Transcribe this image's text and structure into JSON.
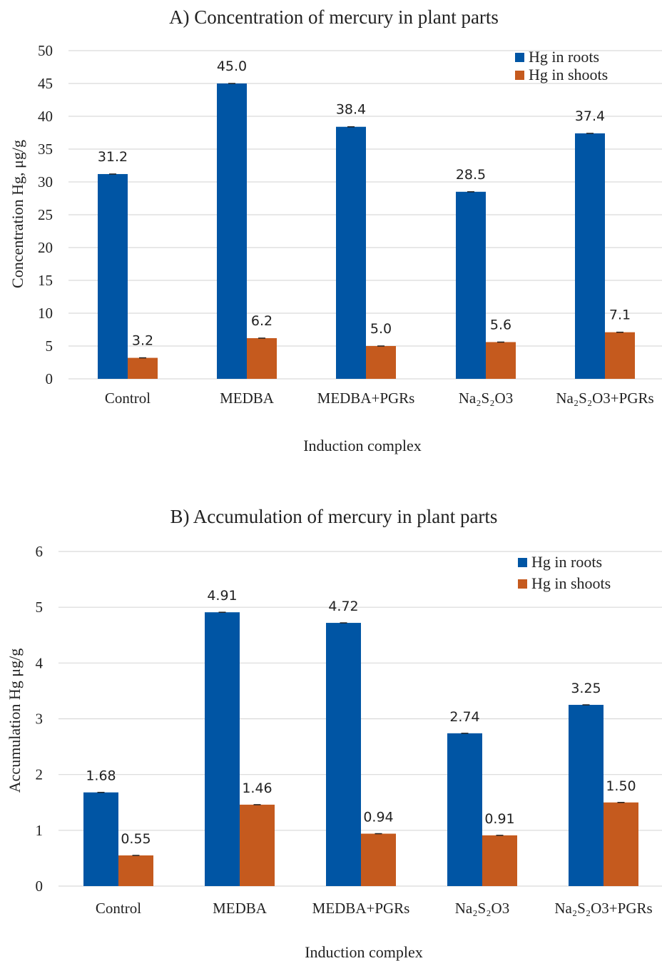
{
  "colors": {
    "roots": "#0055A4",
    "shoots": "#C55A1E",
    "grid": "#d9d9d9",
    "errbar": "#222222"
  },
  "chart_data": [
    {
      "type": "bar",
      "title": "A) Concentration of mercury in plant parts",
      "xlabel": "Induction complex",
      "ylabel": "Concentration  Hg, μg/g",
      "ylim": [
        0,
        50
      ],
      "yticks": [
        0,
        5,
        10,
        15,
        20,
        25,
        30,
        35,
        40,
        45,
        50
      ],
      "grid": true,
      "legend_position": "top-right",
      "categories": [
        "Control",
        "MEDBA",
        "MEDBA+PGRs",
        "Na₂S₂O3",
        "Na₂S₂O3+PGRs"
      ],
      "series": [
        {
          "name": "Hg in roots",
          "values": [
            31.2,
            45.0,
            38.4,
            28.5,
            37.4
          ],
          "labels": [
            "31.2",
            "45.0",
            "38.4",
            "28.5",
            "37.4"
          ]
        },
        {
          "name": "Hg in shoots",
          "values": [
            3.2,
            6.2,
            5.0,
            5.6,
            7.1
          ],
          "labels": [
            "3.2",
            "6.2",
            "5.0",
            "5.6",
            "7.1"
          ]
        }
      ]
    },
    {
      "type": "bar",
      "title": "B) Accumulation of mercury in plant parts",
      "xlabel": "Induction complex",
      "ylabel": "Accumulation Hg μg/g",
      "ylim": [
        0,
        6
      ],
      "yticks": [
        0,
        1,
        2,
        3,
        4,
        5,
        6
      ],
      "grid": true,
      "legend_position": "top-right",
      "categories": [
        "Control",
        "MEDBA",
        "MEDBA+PGRs",
        "Na₂S₂O3",
        "Na₂S₂O3+PGRs"
      ],
      "series": [
        {
          "name": "Hg in roots",
          "values": [
            1.68,
            4.91,
            4.72,
            2.74,
            3.25
          ],
          "labels": [
            "1.68",
            "4.91",
            "4.72",
            "2.74",
            "3.25"
          ]
        },
        {
          "name": "Hg in shoots",
          "values": [
            0.55,
            1.46,
            0.94,
            0.91,
            1.5
          ],
          "labels": [
            "0.55",
            "1.46",
            "0.94",
            "0.91",
            "1.50"
          ]
        }
      ]
    }
  ]
}
